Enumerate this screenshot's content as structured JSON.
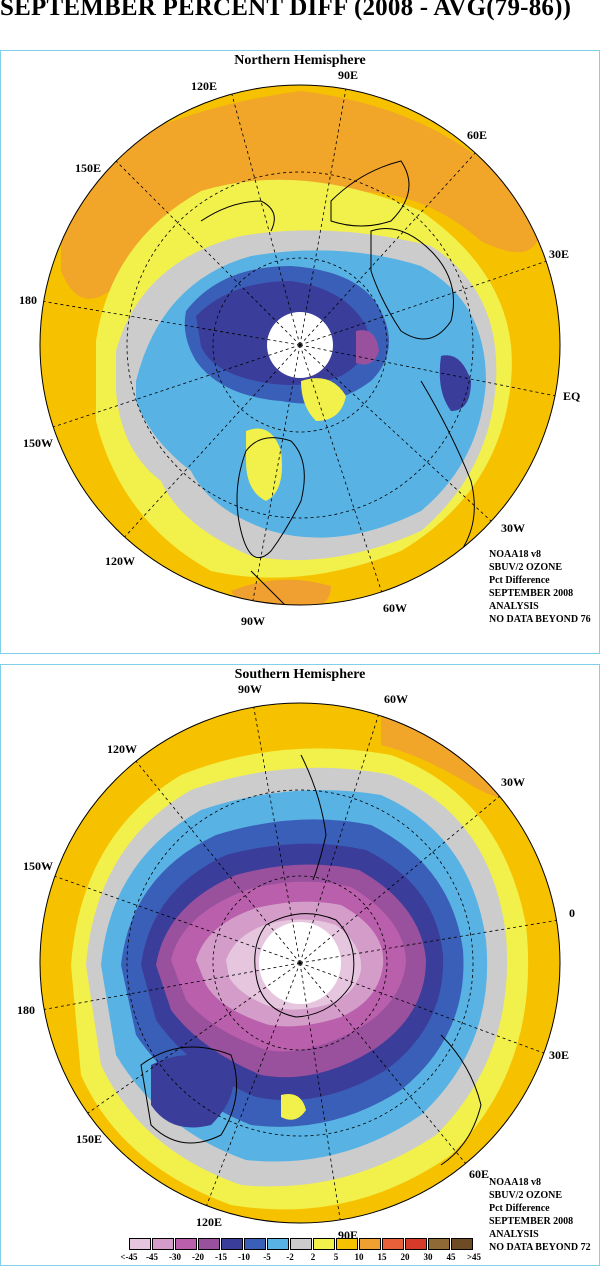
{
  "title": "SEPTEMBER PERCENT DIFF (2008 - AVG(79-86))",
  "north": {
    "title": "Northern Hemisphere",
    "longitude_labels": [
      "90E",
      "60E",
      "30E",
      "EQ",
      "30W",
      "60W",
      "90W",
      "120W",
      "150W",
      "180",
      "150E",
      "120E"
    ],
    "info": [
      "NOAA18 v8",
      "SBUV/2 OZONE",
      "Pct Difference",
      "SEPTEMBER 2008",
      "ANALYSIS",
      "NO DATA BEYOND  76"
    ]
  },
  "south": {
    "title": "Southern Hemisphere",
    "longitude_labels": [
      "90W",
      "60W",
      "30W",
      "0",
      "30E",
      "60E",
      "90E",
      "120E",
      "150E",
      "180",
      "150W",
      "120W"
    ],
    "info": [
      "NOAA18 v8",
      "SBUV/2 OZONE",
      "Pct Difference",
      "SEPTEMBER 2008",
      "ANALYSIS",
      "NO DATA BEYOND  72"
    ]
  },
  "legend": {
    "labels": [
      "<-45",
      "-45",
      "-30",
      "-20",
      "-15",
      "-10",
      "-5",
      "-2",
      "2",
      "5",
      "10",
      "15",
      "20",
      "30",
      "45",
      ">45"
    ],
    "colors": [
      "#e6c6df",
      "#d49cc8",
      "#b95fab",
      "#99509d",
      "#3a3d99",
      "#3a5fb8",
      "#58b3e4",
      "#cccccc",
      "#f2f04a",
      "#f6c200",
      "#f0a030",
      "#e8603a",
      "#d83a2a",
      "#8f6a36",
      "#6e4a25",
      "#ffffff"
    ]
  },
  "colors": {
    "panel_border": "#7fd0e8",
    "ocean_yellow": "#f6c200",
    "light_yellow": "#f2f04a",
    "orange": "#f0a030",
    "gray": "#cccccc",
    "light_blue": "#58b3e4",
    "mid_blue": "#3a5fb8",
    "dark_blue": "#3a3d99",
    "purple": "#99509d",
    "magenta": "#b95fab",
    "pink": "#d49cc8",
    "light_pink": "#e6c6df"
  }
}
